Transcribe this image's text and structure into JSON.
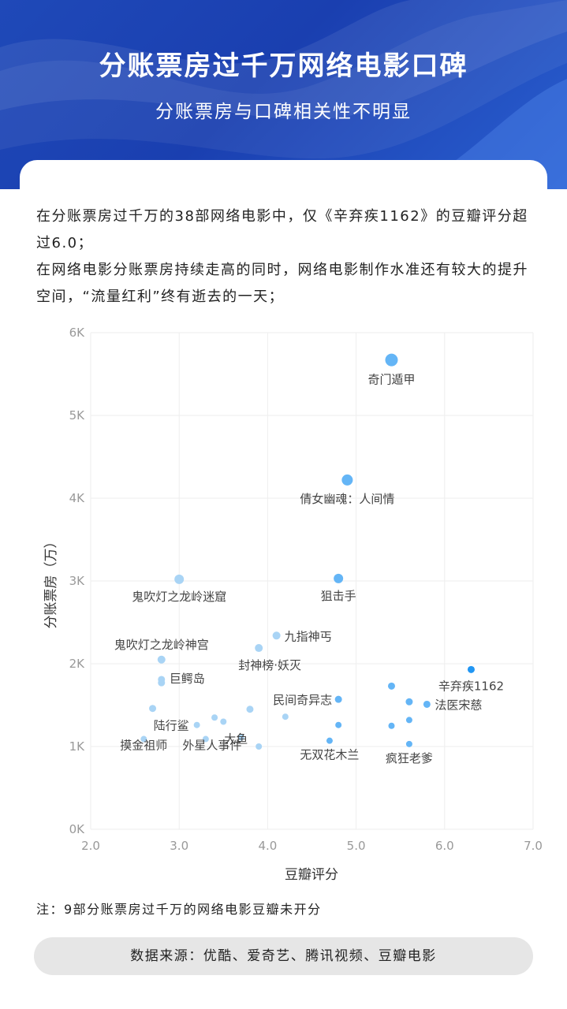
{
  "header": {
    "title": "分账票房过千万网络电影口碑",
    "subtitle": "分账票房与口碑相关性不明显"
  },
  "intro": {
    "paragraph_1": "在分账票房过千万的38部网络电影中，仅《辛弃疾1162》的豆瓣评分超过6.0；",
    "paragraph_2": "在网络电影分账票房持续走高的同时，网络电影制作水准还有较大的提升空间，“流量红利”终有逝去的一天；"
  },
  "footer": {
    "note": "注：9部分账票房过千万的网络电影豆瓣未开分",
    "source": "数据来源：优酷、爱奇艺、腾讯视频、豆瓣电影"
  },
  "colors": {
    "light_point": "#a9d4f5",
    "mid_point": "#64b5f6",
    "dark_point": "#2196f3",
    "grid": "#eeeeee",
    "tick_text": "#999999",
    "label_text": "#444444"
  },
  "chart_data": {
    "type": "scatter",
    "xlabel": "豆瓣评分",
    "ylabel": "分账票房（万）",
    "xlim": [
      2.0,
      7.0
    ],
    "ylim": [
      0,
      6000
    ],
    "x_ticks": [
      "2.0",
      "3.0",
      "4.0",
      "5.0",
      "6.0",
      "7.0"
    ],
    "y_ticks": [
      "0K",
      "1K",
      "2K",
      "3K",
      "4K",
      "5K",
      "6K"
    ],
    "grid": true,
    "points": [
      {
        "x": 5.4,
        "y": 5670,
        "label": "奇门遁甲"
      },
      {
        "x": 4.9,
        "y": 4220,
        "label": "倩女幽魂：人间情"
      },
      {
        "x": 4.8,
        "y": 3030,
        "label": "狙击手"
      },
      {
        "x": 3.0,
        "y": 3020,
        "label": "鬼吹灯之龙岭迷窟"
      },
      {
        "x": 4.1,
        "y": 2340,
        "label": "九指神丐"
      },
      {
        "x": 3.9,
        "y": 2190,
        "label": "封神榜·妖灭"
      },
      {
        "x": 2.8,
        "y": 2050,
        "label": "鬼吹灯之龙岭神宫"
      },
      {
        "x": 6.3,
        "y": 1930,
        "label": "辛弃疾1162"
      },
      {
        "x": 2.8,
        "y": 1810,
        "label": "巨鳄岛"
      },
      {
        "x": 2.8,
        "y": 1770,
        "label": ""
      },
      {
        "x": 5.4,
        "y": 1730,
        "label": ""
      },
      {
        "x": 4.8,
        "y": 1570,
        "label": "民间奇异志"
      },
      {
        "x": 5.6,
        "y": 1540,
        "label": ""
      },
      {
        "x": 5.8,
        "y": 1510,
        "label": "法医宋慈"
      },
      {
        "x": 2.7,
        "y": 1460,
        "label": ""
      },
      {
        "x": 3.8,
        "y": 1450,
        "label": ""
      },
      {
        "x": 4.2,
        "y": 1360,
        "label": ""
      },
      {
        "x": 3.4,
        "y": 1350,
        "label": ""
      },
      {
        "x": 5.6,
        "y": 1320,
        "label": ""
      },
      {
        "x": 3.5,
        "y": 1300,
        "label": "大鱼"
      },
      {
        "x": 3.2,
        "y": 1260,
        "label": "陆行鲨"
      },
      {
        "x": 4.8,
        "y": 1260,
        "label": ""
      },
      {
        "x": 5.4,
        "y": 1250,
        "label": ""
      },
      {
        "x": 3.7,
        "y": 1110,
        "label": ""
      },
      {
        "x": 2.6,
        "y": 1090,
        "label": "摸金祖师"
      },
      {
        "x": 3.3,
        "y": 1090,
        "label": "外星人事件"
      },
      {
        "x": 4.7,
        "y": 1070,
        "label": "无双花木兰"
      },
      {
        "x": 5.6,
        "y": 1030,
        "label": "疯狂老爹"
      },
      {
        "x": 3.9,
        "y": 1000,
        "label": ""
      }
    ]
  }
}
